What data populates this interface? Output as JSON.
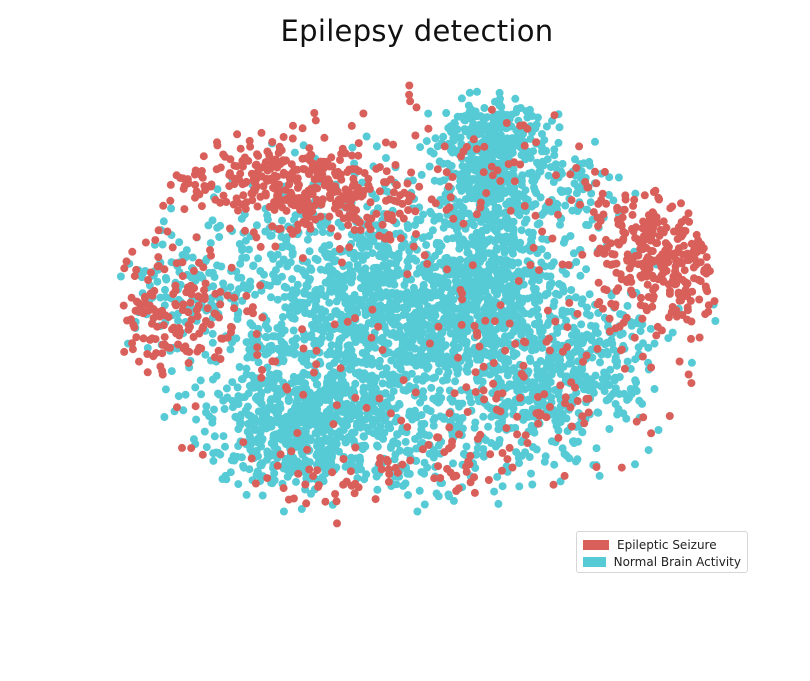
{
  "chart_data": {
    "type": "scatter",
    "title": "Epilepsy detection",
    "xlabel": "",
    "ylabel": "",
    "axes_visible": false,
    "grid": false,
    "legend_position": "lower-right",
    "xlim": [
      -100,
      100
    ],
    "ylim": [
      -100,
      100
    ],
    "series": [
      {
        "name": "Epileptic Seizure",
        "color": "#d9605a",
        "clusters": [
          {
            "center": [
              -47,
              54
            ],
            "spread": [
              16,
              9
            ],
            "count": 240
          },
          {
            "center": [
              -78,
              2
            ],
            "spread": [
              11,
              13
            ],
            "count": 150
          },
          {
            "center": [
              -22,
              44
            ],
            "spread": [
              13,
              9
            ],
            "count": 110
          },
          {
            "center": [
              80,
              16
            ],
            "spread": [
              11,
              13
            ],
            "count": 230
          },
          {
            "center": [
              70,
              36
            ],
            "spread": [
              12,
              8
            ],
            "count": 70
          },
          {
            "center": [
              34,
              -36
            ],
            "spread": [
              18,
              13
            ],
            "count": 70
          },
          {
            "center": [
              0,
              -10
            ],
            "spread": [
              55,
              45
            ],
            "count": 130
          },
          {
            "center": [
              -20,
              -66
            ],
            "spread": [
              30,
              6
            ],
            "count": 60
          },
          {
            "center": [
              0,
              60
            ],
            "spread": [
              48,
              22
            ],
            "count": 90
          }
        ]
      },
      {
        "name": "Normal Brain Activity",
        "color": "#56cbd6",
        "clusters": [
          {
            "center": [
              -5,
              -5
            ],
            "spread": [
              28,
              26
            ],
            "count": 1400
          },
          {
            "center": [
              -38,
              -45
            ],
            "spread": [
              14,
              12
            ],
            "count": 500
          },
          {
            "center": [
              22,
              62
            ],
            "spread": [
              7,
              16
            ],
            "count": 480
          },
          {
            "center": [
              22,
              10
            ],
            "spread": [
              11,
              16
            ],
            "count": 380
          },
          {
            "center": [
              44,
              -28
            ],
            "spread": [
              14,
              11
            ],
            "count": 260
          },
          {
            "center": [
              -36,
              8
            ],
            "spread": [
              26,
              22
            ],
            "count": 320
          },
          {
            "center": [
              -74,
              10
            ],
            "spread": [
              8,
              10
            ],
            "count": 70
          },
          {
            "center": [
              44,
              52
            ],
            "spread": [
              12,
              14
            ],
            "count": 130
          },
          {
            "center": [
              55,
              -10
            ],
            "spread": [
              12,
              12
            ],
            "count": 120
          },
          {
            "center": [
              -5,
              -55
            ],
            "spread": [
              30,
              10
            ],
            "count": 200
          }
        ]
      }
    ]
  }
}
